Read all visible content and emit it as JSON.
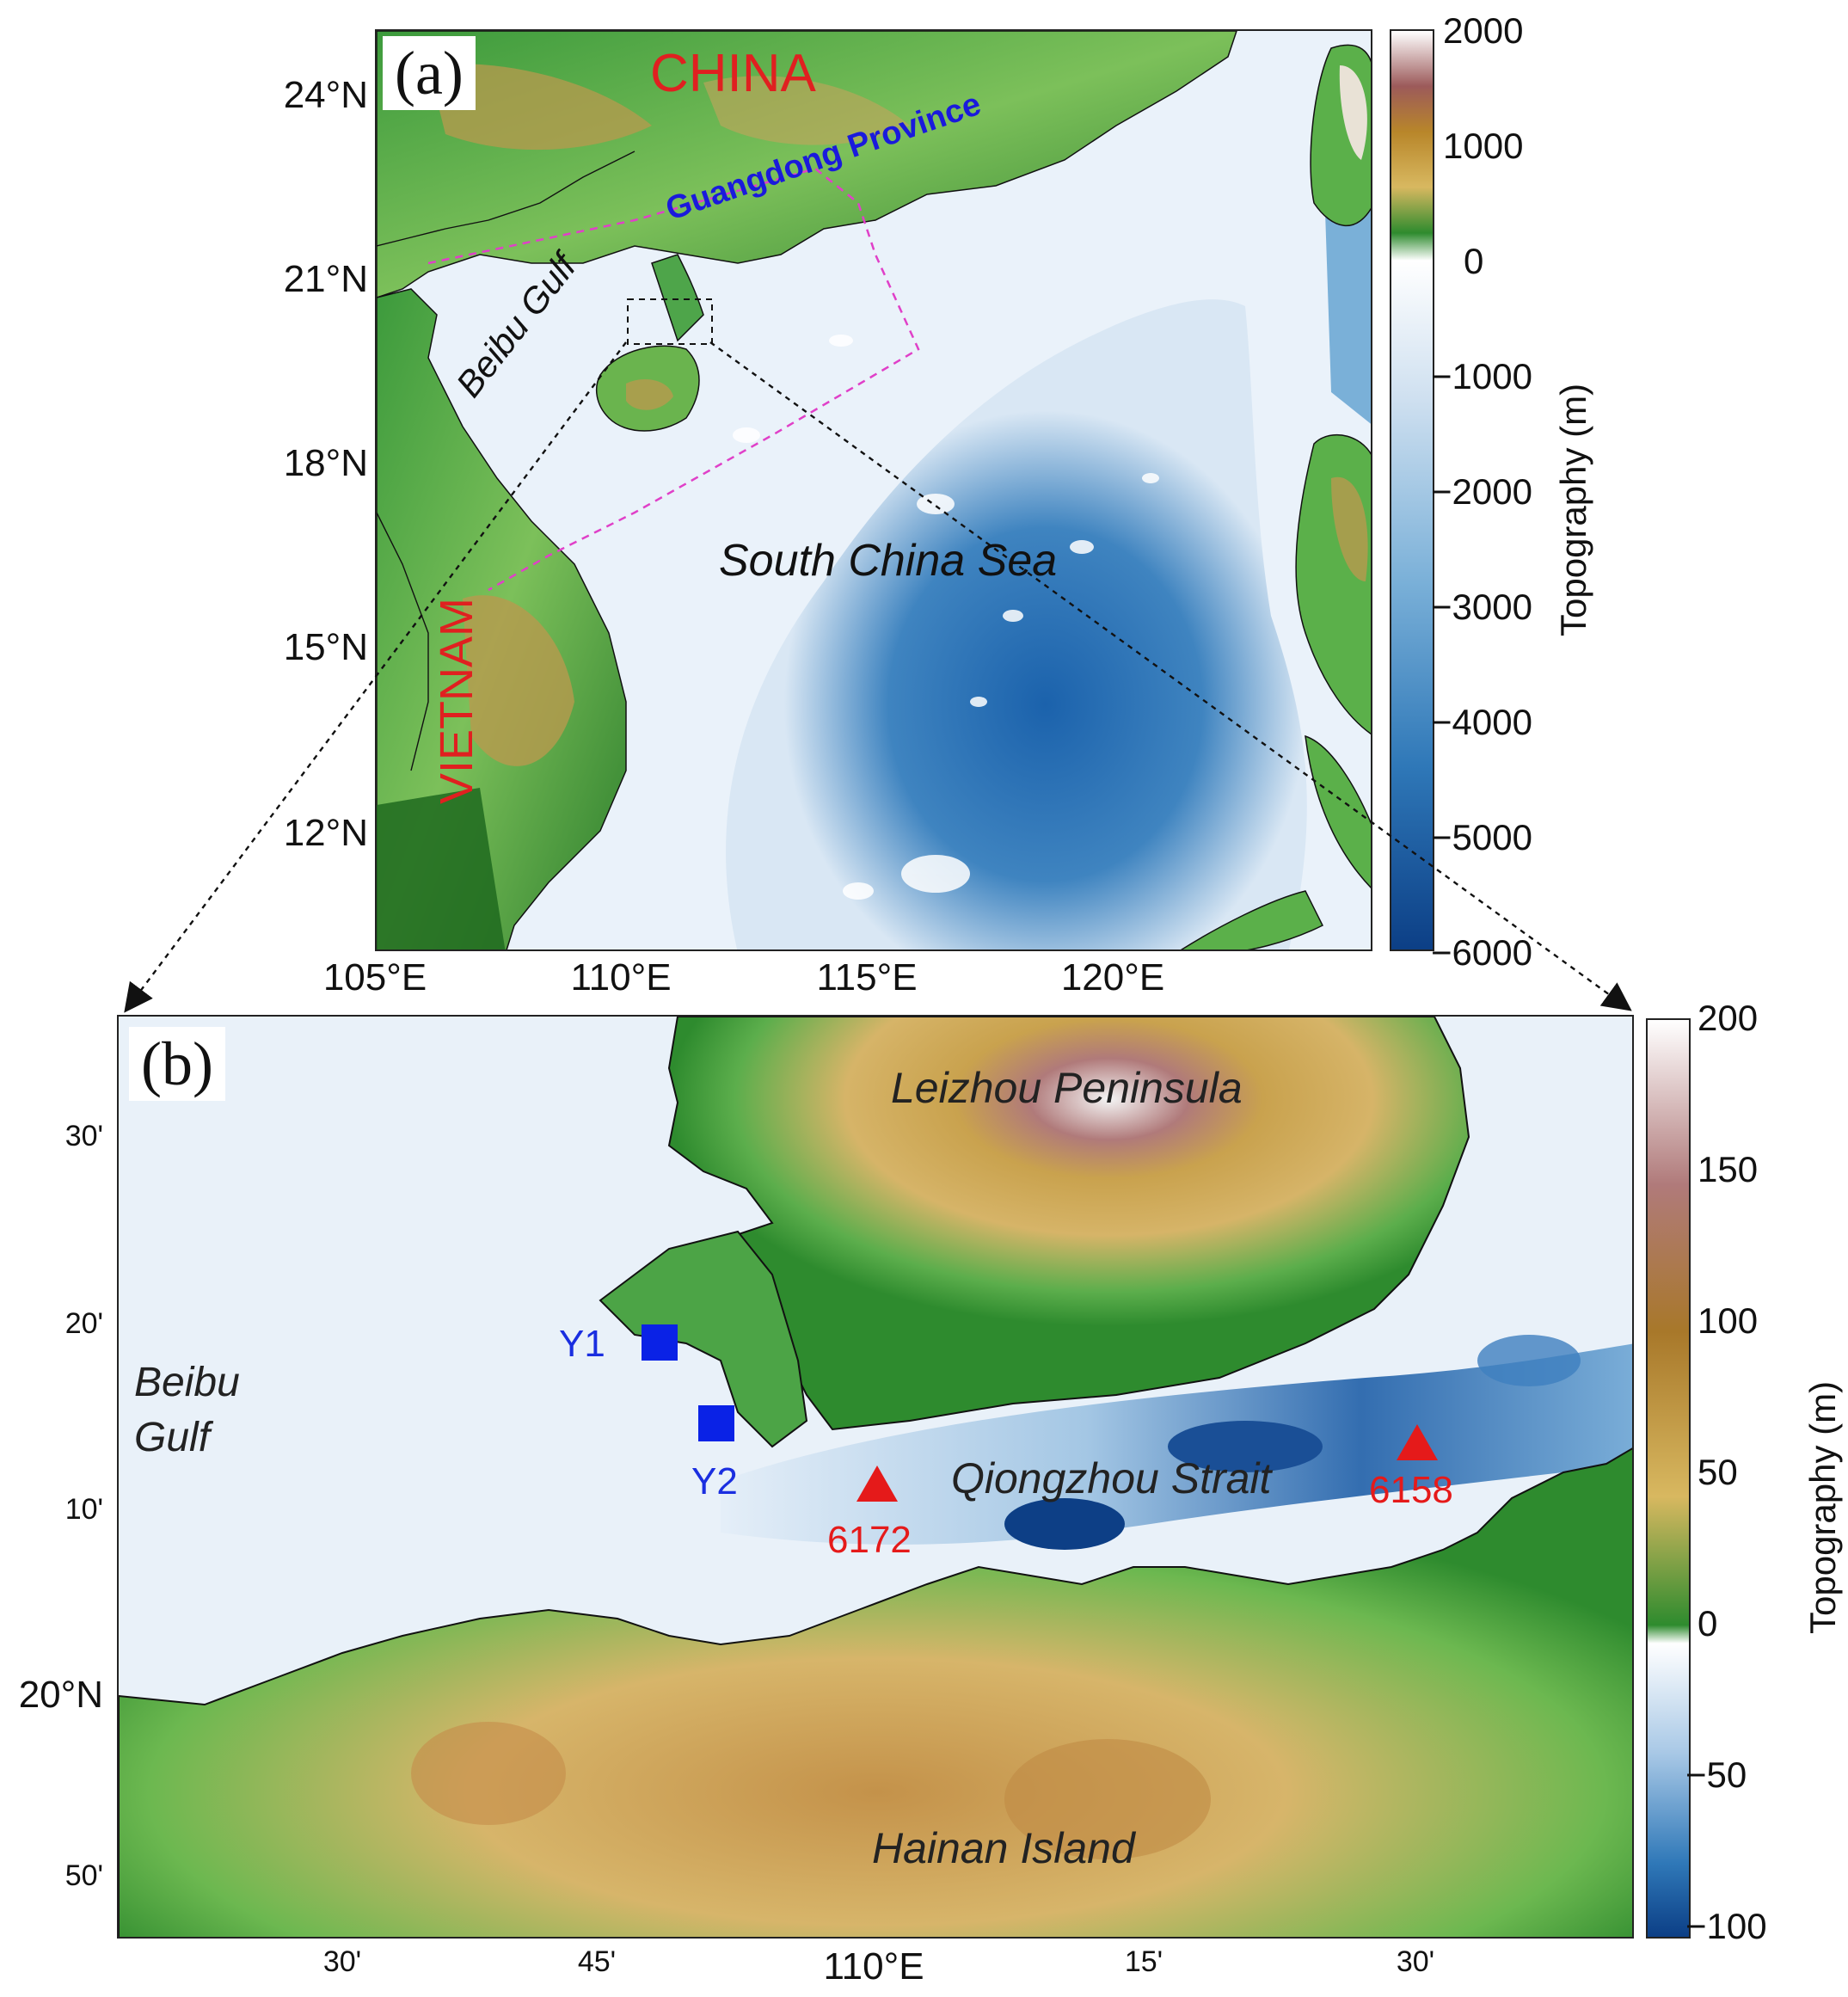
{
  "panel_a": {
    "label": "(a)",
    "lat_ticks": [
      "24°N",
      "21°N",
      "18°N",
      "15°N",
      "12°N"
    ],
    "lon_ticks": [
      "105°E",
      "110°E",
      "115°E",
      "120°E"
    ],
    "places": {
      "china": "CHINA",
      "guangdong": "Guangdong Province",
      "beibu": "Beibu Gulf",
      "scs": "South China Sea",
      "vietnam": "VIETNAM"
    },
    "colorbar": {
      "ticks": [
        "2000",
        "1000",
        "0",
        "−1000",
        "−2000",
        "−3000",
        "−4000",
        "−5000",
        "−6000"
      ],
      "label": "Topography (m)"
    }
  },
  "panel_b": {
    "label": "(b)",
    "lat_ticks": [
      "30'",
      "20'",
      "10'",
      "20°N",
      "50'"
    ],
    "lon_ticks": [
      "30'",
      "45'",
      "110°E",
      "15'",
      "30'"
    ],
    "places": {
      "leizhou": "Leizhou Peninsula",
      "beibu_1": "Beibu",
      "beibu_2": "Gulf",
      "qiongzhou": "Qiongzhou Strait",
      "hainan": "Hainan Island"
    },
    "stations": {
      "y1": "Y1",
      "y2": "Y2",
      "s6172": "6172",
      "s6158": "6158"
    },
    "colorbar": {
      "ticks": [
        "200",
        "150",
        "100",
        "50",
        "0",
        "−50",
        "−100"
      ],
      "label": "Topography (m)"
    }
  },
  "colors": {
    "deep_sea": "#1a5ea4",
    "shallow_sea": "#eef3fa",
    "lowland": "#2e8b2e",
    "highland": "#c8a050",
    "peak": "#f4f4f4",
    "country_label": "#e02020",
    "province_label": "#1a1adc",
    "station_square": "#0a22e6",
    "station_triangle": "#e51a1a",
    "box_dash": "#e040c8"
  }
}
